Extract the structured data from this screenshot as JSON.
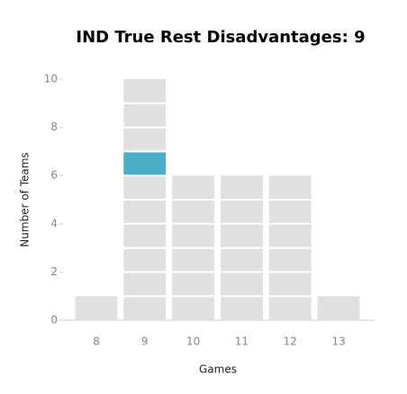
{
  "chart_data": {
    "type": "unit-bar",
    "title": "IND True Rest Disadvantages: 9",
    "x_label": "Games",
    "y_label": "Number of Teams",
    "categories": [
      "8",
      "9",
      "10",
      "11",
      "12",
      "13"
    ],
    "values": [
      1,
      10,
      6,
      6,
      6,
      1
    ],
    "color": "#e0e0e0",
    "highlight": {
      "category": "9",
      "unit": 7,
      "color": "#4bafc9"
    },
    "ylim": [
      0,
      10
    ],
    "yticks": [
      0,
      2,
      4,
      6,
      8,
      10
    ]
  }
}
